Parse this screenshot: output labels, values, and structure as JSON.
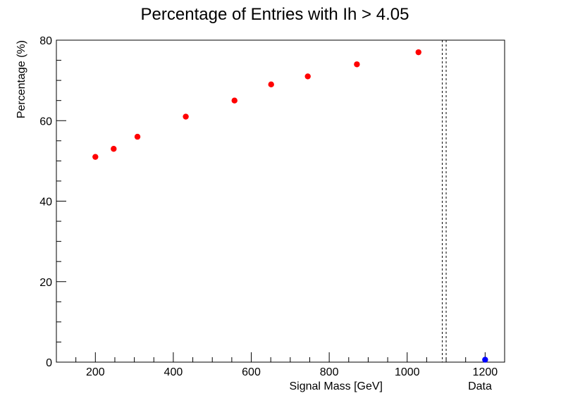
{
  "chart_data": {
    "type": "scatter",
    "title": "Percentage of Entries with Ih > 4.05",
    "xlabel": "Signal Mass [GeV]",
    "ylabel": "Percentage (%)",
    "xlim": [
      100,
      1250
    ],
    "ylim": [
      0,
      80
    ],
    "x_ticks": [
      200,
      400,
      600,
      800,
      1000,
      1200
    ],
    "y_ticks": [
      0,
      20,
      40,
      60,
      80
    ],
    "grid": false,
    "series": [
      {
        "color": "#ff0000",
        "points": [
          {
            "x": 200,
            "y": 51
          },
          {
            "x": 247,
            "y": 53
          },
          {
            "x": 308,
            "y": 56
          },
          {
            "x": 432,
            "y": 61
          },
          {
            "x": 557,
            "y": 65
          },
          {
            "x": 651,
            "y": 69
          },
          {
            "x": 745,
            "y": 71
          },
          {
            "x": 871,
            "y": 74
          },
          {
            "x": 1029,
            "y": 77
          }
        ]
      },
      {
        "color": "#0000ff",
        "points": [
          {
            "x": 1200,
            "y": 0.6
          }
        ]
      }
    ],
    "vertical_lines": [
      {
        "x": 1090,
        "style": "dashed"
      },
      {
        "x": 1100,
        "style": "dashed"
      }
    ],
    "annotations": [
      {
        "text": "Data",
        "x": 1200
      }
    ]
  }
}
